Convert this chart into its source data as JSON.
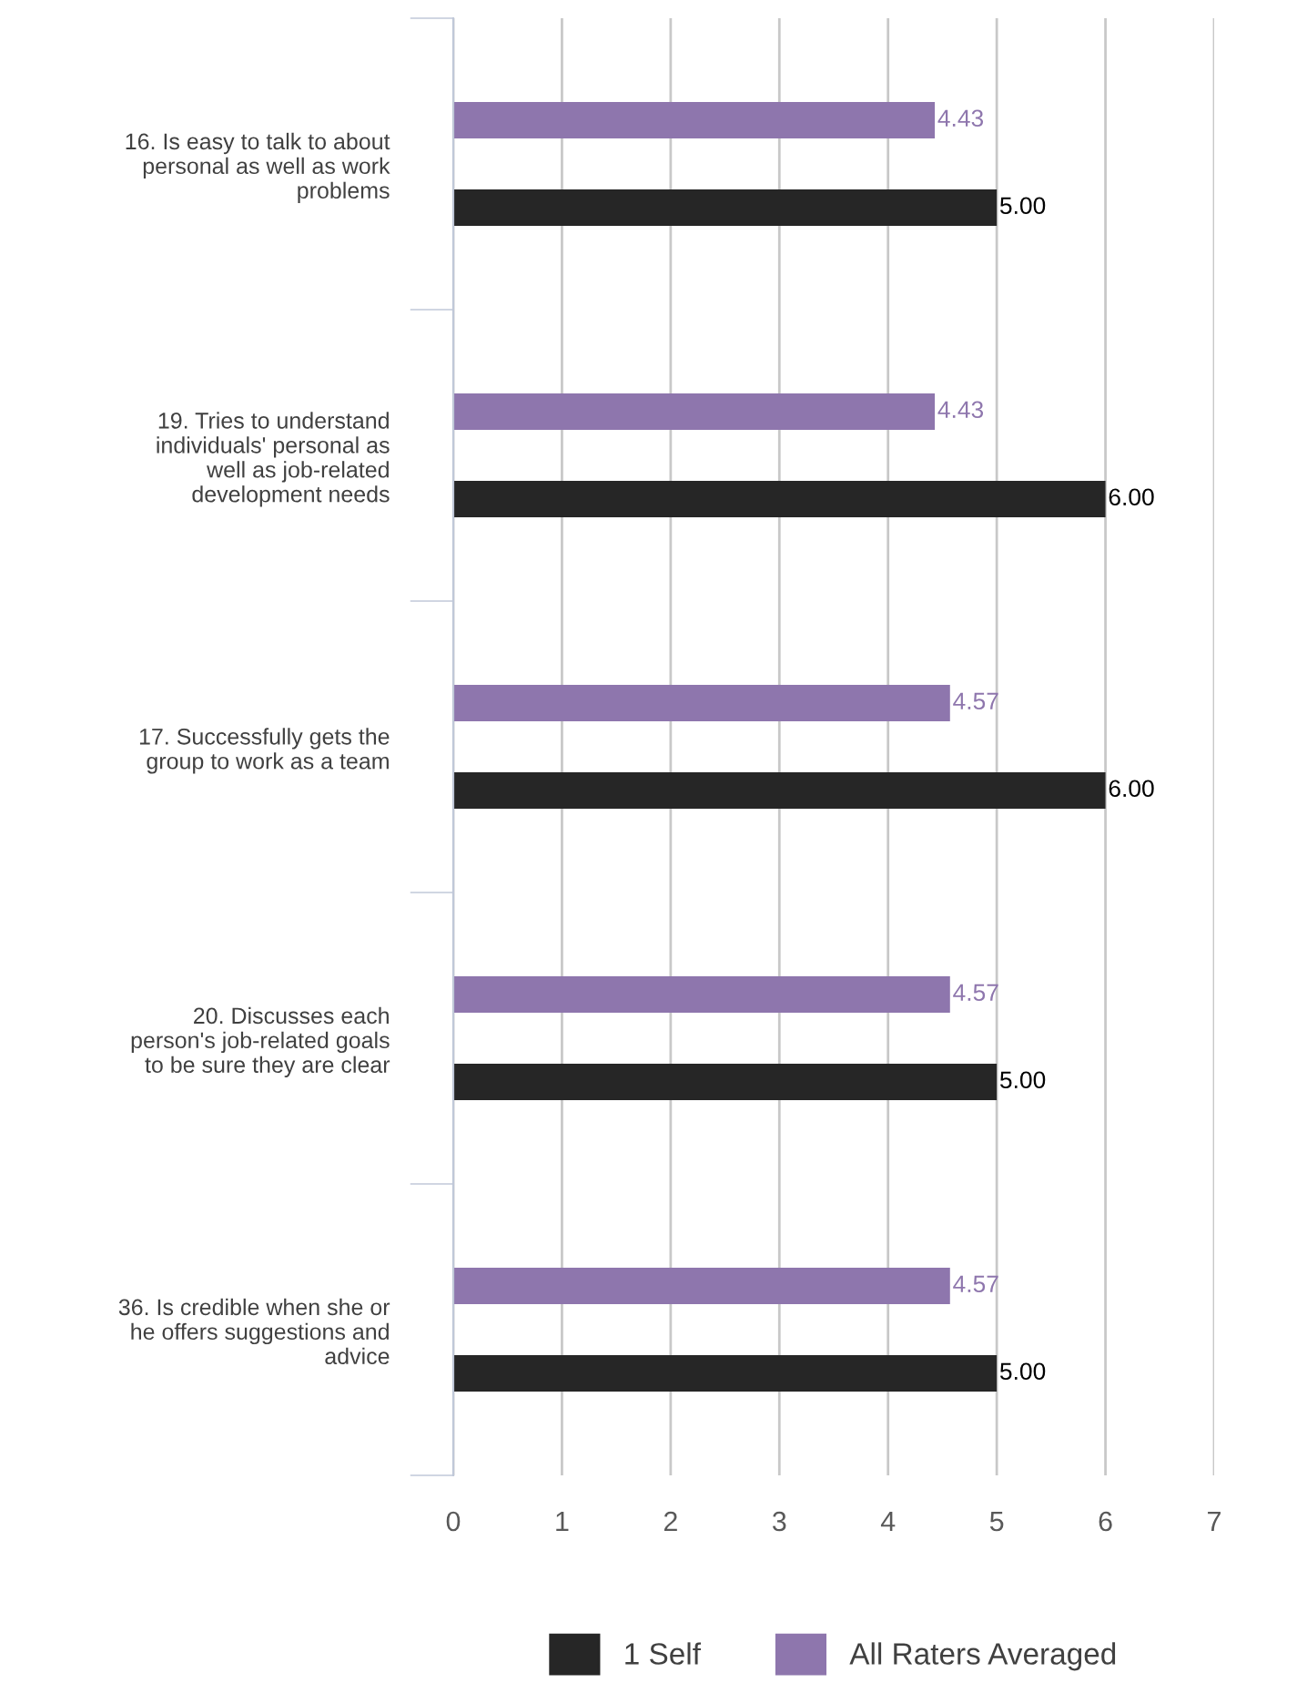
{
  "chart_data": {
    "type": "bar",
    "orientation": "horizontal",
    "categories": [
      "16. Is easy to talk to about\npersonal as well as work\nproblems",
      "19. Tries to understand\nindividuals' personal as\nwell as job-related\ndevelopment needs",
      "17. Successfully gets the\ngroup to work as a team",
      "20. Discusses each\nperson's job-related goals\nto be sure they are clear",
      "36. Is credible when she or\nhe offers suggestions and\nadvice"
    ],
    "series": [
      {
        "name": "1 Self",
        "color": "#262626",
        "values": [
          5.0,
          6.0,
          6.0,
          5.0,
          5.0
        ],
        "value_labels": [
          "5.00",
          "6.00",
          "6.00",
          "5.00",
          "5.00"
        ]
      },
      {
        "name": "All Raters Averaged",
        "color": "#8e76ad",
        "values": [
          4.43,
          4.43,
          4.57,
          4.57,
          4.57
        ],
        "value_labels": [
          "4.43",
          "4.43",
          "4.57",
          "4.57",
          "4.57"
        ]
      }
    ],
    "xlim": [
      0,
      7
    ],
    "xticks": [
      0,
      1,
      2,
      3,
      4,
      5,
      6,
      7
    ],
    "grid": "x",
    "legend": "bottom"
  }
}
